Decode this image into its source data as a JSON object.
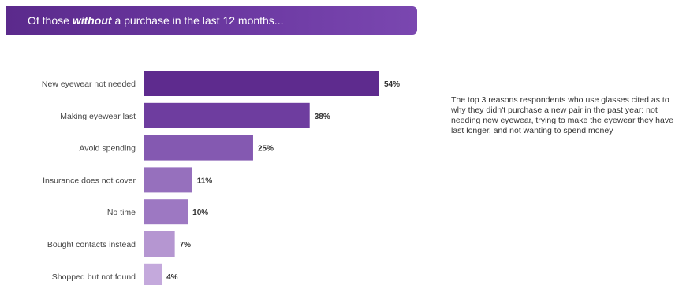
{
  "header": {
    "prefix": "Of those ",
    "emphasis": "without",
    "suffix": " a purchase in the last 12 months..."
  },
  "note": {
    "text": "The top 3 reasons respondents who use glasses cited as to why they didn't purchase a new pair in the past year: not needing new eyewear, trying to make the eyewear they have last longer, and not wanting to spend money"
  },
  "chart_data": {
    "type": "bar",
    "orientation": "horizontal",
    "title": "",
    "xlabel": "",
    "ylabel": "",
    "xlim": [
      0,
      54
    ],
    "grid": false,
    "categories": [
      "New eyewear not needed",
      "Making eyewear last",
      "Avoid spending",
      "Insurance does not cover",
      "No time",
      "Bought contacts instead",
      "Shopped but not found"
    ],
    "values": [
      54,
      38,
      25,
      11,
      10,
      7,
      4
    ],
    "value_labels": [
      "54%",
      "38%",
      "25%",
      "11%",
      "10%",
      "7%",
      "4%"
    ],
    "colors": [
      "#5e2b8e",
      "#6e3d9f",
      "#8459b1",
      "#9670bd",
      "#9d78c2",
      "#b596d1",
      "#c4a9dc"
    ]
  }
}
